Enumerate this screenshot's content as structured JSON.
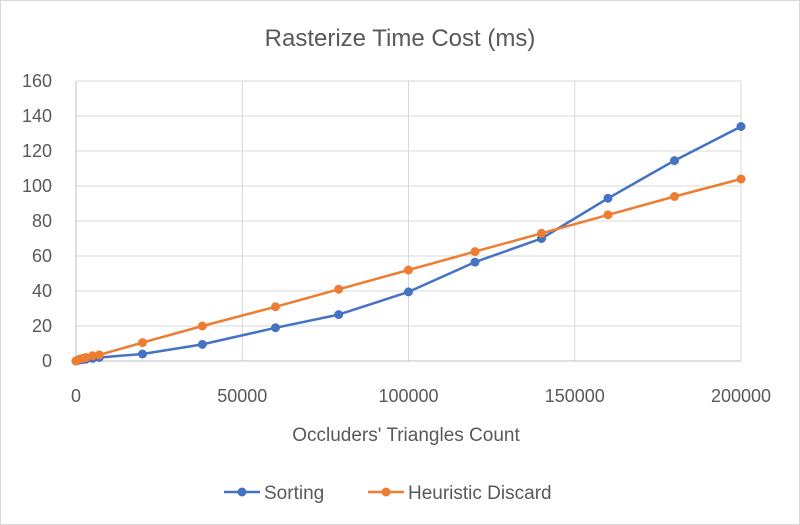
{
  "chart_data": {
    "type": "line",
    "title": "Rasterize Time Cost (ms)",
    "xlabel": "Occluders' Triangles Count",
    "ylabel": "",
    "xlim": [
      0,
      200000
    ],
    "ylim": [
      0,
      160
    ],
    "x_ticks": [
      0,
      50000,
      100000,
      150000,
      200000
    ],
    "y_ticks": [
      0,
      20,
      40,
      60,
      80,
      100,
      120,
      140,
      160
    ],
    "grid": true,
    "legend_position": "bottom",
    "series": [
      {
        "name": "Sorting",
        "color": "#4472C4",
        "x": [
          0,
          500,
          1000,
          2000,
          3000,
          5000,
          7000,
          20000,
          38000,
          60000,
          79000,
          100000,
          120000,
          140000,
          160000,
          180000,
          200000
        ],
        "y": [
          0,
          0.3,
          0.5,
          0.8,
          1,
          1.5,
          2,
          4,
          9.5,
          19,
          26.5,
          39.5,
          56.5,
          70,
          93,
          114.5,
          134
        ]
      },
      {
        "name": "Heuristic Discard",
        "color": "#ED7D31",
        "x": [
          0,
          500,
          1000,
          2000,
          3000,
          5000,
          7000,
          20000,
          38000,
          60000,
          79000,
          100000,
          120000,
          140000,
          160000,
          180000,
          200000
        ],
        "y": [
          0,
          0.5,
          1,
          1.5,
          2,
          3,
          3.5,
          10.5,
          20,
          31,
          41,
          52,
          62.5,
          73,
          83.5,
          94,
          104
        ]
      }
    ]
  }
}
